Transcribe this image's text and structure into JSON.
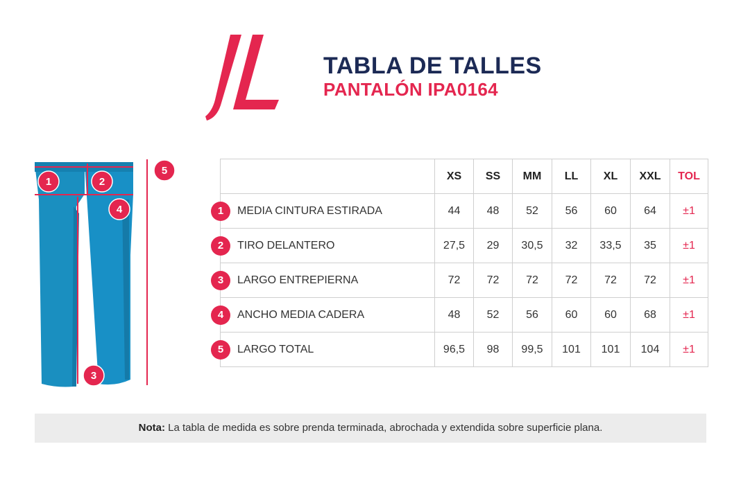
{
  "header": {
    "title": "TABLA DE TALLES",
    "subtitle": "PANTALÓN IPA0164"
  },
  "logo": {
    "name": "jl-logo",
    "color": "#e4264f"
  },
  "diagram": {
    "markers": [
      "1",
      "2",
      "3",
      "4",
      "5"
    ],
    "garment_color": "#1a8fc0",
    "marker_color": "#e4264f"
  },
  "table": {
    "sizes": [
      "XS",
      "SS",
      "MM",
      "LL",
      "XL",
      "XXL"
    ],
    "tol_label": "TOL",
    "rows": [
      {
        "num": "1",
        "label": "MEDIA CINTURA ESTIRADA",
        "values": [
          "44",
          "48",
          "52",
          "56",
          "60",
          "64"
        ],
        "tol": "±1"
      },
      {
        "num": "2",
        "label": "TIRO DELANTERO",
        "values": [
          "27,5",
          "29",
          "30,5",
          "32",
          "33,5",
          "35"
        ],
        "tol": "±1"
      },
      {
        "num": "3",
        "label": "LARGO ENTREPIERNA",
        "values": [
          "72",
          "72",
          "72",
          "72",
          "72",
          "72"
        ],
        "tol": "±1"
      },
      {
        "num": "4",
        "label": "ANCHO MEDIA CADERA",
        "values": [
          "48",
          "52",
          "56",
          "60",
          "60",
          "68"
        ],
        "tol": "±1"
      },
      {
        "num": "5",
        "label": "LARGO TOTAL",
        "values": [
          "96,5",
          "98",
          "99,5",
          "101",
          "101",
          "104"
        ],
        "tol": "±1"
      }
    ]
  },
  "note": {
    "label": "Nota:",
    "text": " La tabla de medida es sobre prenda terminada, abrochada y extendida sobre superficie plana."
  }
}
